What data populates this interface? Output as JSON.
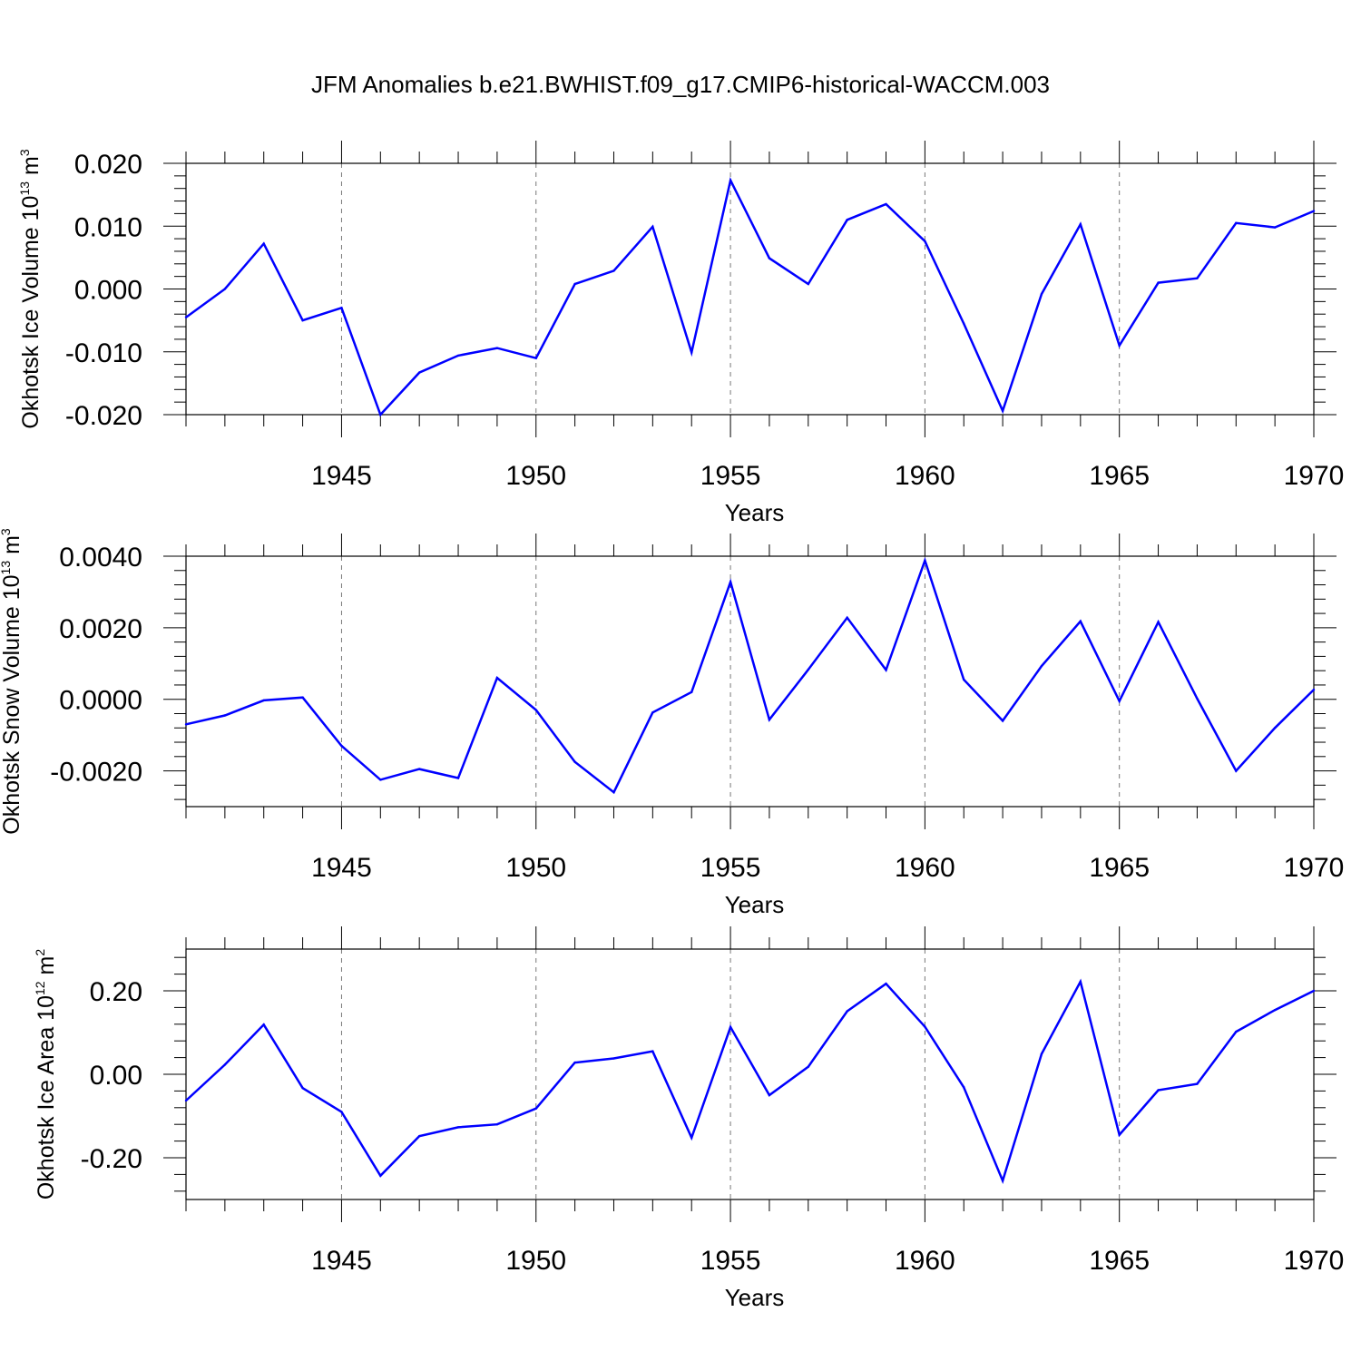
{
  "title": "JFM Anomalies b.e21.BWHIST.f09_g17.CMIP6-historical-WACCM.003",
  "colors": {
    "series": "#0000ff",
    "axis": "#000000",
    "grid": "#777777"
  },
  "chart_data": [
    {
      "type": "line",
      "title": "JFM Anomalies b.e21.BWHIST.f09_g17.CMIP6-historical-WACCM.003",
      "xlabel": "Years",
      "ylabel": {
        "name": "Okhotsk Ice Volume",
        "base": "10",
        "exp": "13",
        "unit": "m",
        "unit_exp": "3"
      },
      "xlim": [
        1941,
        1970
      ],
      "ylim": [
        -0.02,
        0.02
      ],
      "xticks": [
        "1945",
        "1950",
        "1955",
        "1960",
        "1965",
        "1970"
      ],
      "yticks": [
        {
          "v": 0.02,
          "label": "0.020"
        },
        {
          "v": 0.01,
          "label": "0.010"
        },
        {
          "v": 0.0,
          "label": "0.000"
        },
        {
          "v": -0.01,
          "label": "-0.010"
        },
        {
          "v": -0.02,
          "label": "-0.020"
        }
      ],
      "x": [
        1941,
        1942,
        1943,
        1944,
        1945,
        1946,
        1947,
        1948,
        1949,
        1950,
        1951,
        1952,
        1953,
        1954,
        1955,
        1956,
        1957,
        1958,
        1959,
        1960,
        1961,
        1962,
        1963,
        1964,
        1965,
        1966,
        1967,
        1968,
        1969,
        1970
      ],
      "values": [
        -0.0045,
        0.0,
        0.0072,
        -0.005,
        -0.003,
        -0.02,
        -0.0133,
        -0.0106,
        -0.0094,
        -0.011,
        0.0008,
        0.0029,
        0.0099,
        -0.0101,
        0.0173,
        0.0049,
        0.0008,
        0.011,
        0.0135,
        0.0076,
        -0.0055,
        -0.0194,
        -0.0008,
        0.0103,
        -0.009,
        0.001,
        0.0017,
        0.0105,
        0.0098,
        0.0124
      ]
    },
    {
      "type": "line",
      "xlabel": "Years",
      "ylabel": {
        "name": "Okhotsk Snow Volume",
        "base": "10",
        "exp": "13",
        "unit": "m",
        "unit_exp": "3"
      },
      "xlim": [
        1941,
        1970
      ],
      "ylim": [
        -0.003,
        0.004
      ],
      "xticks": [
        "1945",
        "1950",
        "1955",
        "1960",
        "1965",
        "1970"
      ],
      "yticks": [
        {
          "v": 0.004,
          "label": "0.0040"
        },
        {
          "v": 0.002,
          "label": "0.0020"
        },
        {
          "v": 0.0,
          "label": "0.0000"
        },
        {
          "v": -0.002,
          "label": "-0.0020"
        }
      ],
      "x": [
        1941,
        1942,
        1943,
        1944,
        1945,
        1946,
        1947,
        1948,
        1949,
        1950,
        1951,
        1952,
        1953,
        1954,
        1955,
        1956,
        1957,
        1958,
        1959,
        1960,
        1961,
        1962,
        1963,
        1964,
        1965,
        1966,
        1967,
        1968,
        1969,
        1970
      ],
      "values": [
        -0.0007,
        -0.00045,
        -3e-05,
        5e-05,
        -0.0013,
        -0.00225,
        -0.00195,
        -0.0022,
        0.0006,
        -0.0003,
        -0.00175,
        -0.0026,
        -0.00037,
        0.0002,
        0.00328,
        -0.00057,
        0.00083,
        0.00228,
        0.00082,
        0.00388,
        0.00055,
        -0.0006,
        0.00093,
        0.00218,
        -5e-05,
        0.00216,
        2e-05,
        -0.002,
        -0.0008,
        0.00027
      ]
    },
    {
      "type": "line",
      "xlabel": "Years",
      "ylabel": {
        "name": "Okhotsk Ice Area",
        "base": "10",
        "exp": "12",
        "unit": "m",
        "unit_exp": "2"
      },
      "xlim": [
        1941,
        1970
      ],
      "ylim": [
        -0.3,
        0.3
      ],
      "xticks": [
        "1945",
        "1950",
        "1955",
        "1960",
        "1965",
        "1970"
      ],
      "yticks": [
        {
          "v": 0.2,
          "label": "0.20"
        },
        {
          "v": 0.0,
          "label": "0.00"
        },
        {
          "v": -0.2,
          "label": "-0.20"
        }
      ],
      "x": [
        1941,
        1942,
        1943,
        1944,
        1945,
        1946,
        1947,
        1948,
        1949,
        1950,
        1951,
        1952,
        1953,
        1954,
        1955,
        1956,
        1957,
        1958,
        1959,
        1960,
        1961,
        1962,
        1963,
        1964,
        1965,
        1966,
        1967,
        1968,
        1969,
        1970
      ],
      "values": [
        -0.063,
        0.023,
        0.119,
        -0.033,
        -0.09,
        -0.243,
        -0.148,
        -0.127,
        -0.12,
        -0.082,
        0.028,
        0.038,
        0.055,
        -0.152,
        0.113,
        -0.05,
        0.018,
        0.151,
        0.217,
        0.114,
        -0.031,
        -0.255,
        0.049,
        0.222,
        -0.145,
        -0.038,
        -0.023,
        0.102,
        0.154,
        0.2
      ]
    }
  ]
}
